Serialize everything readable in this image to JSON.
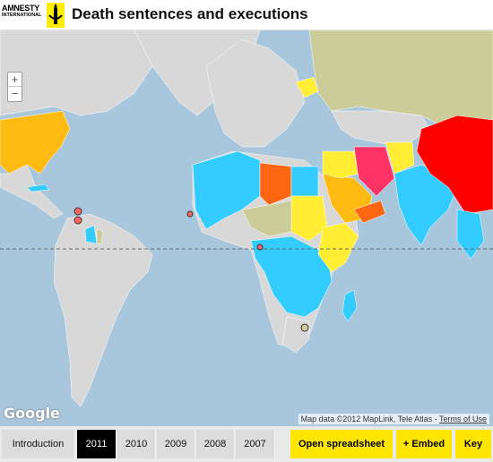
{
  "header": {
    "logo_line1": "AMNESTY",
    "logo_line2": "INTERNATIONAL",
    "title": "Death sentences and executions"
  },
  "map": {
    "zoom_in": "+",
    "zoom_out": "−",
    "google_logo": "Google",
    "attribution": "Map data ©2012 MapLink, Tele Atlas - ",
    "terms": "Terms of Use",
    "colors": {
      "ocean": "#a8c6dc",
      "land": "#d8d8d8",
      "cyan": "#33ccff",
      "yellow": "#ffee33",
      "orange": "#ffbb11",
      "dark_orange": "#ff6611",
      "pink": "#ff3366",
      "red": "#ff0000",
      "olive": "#cccc99"
    }
  },
  "footer": {
    "tabs": [
      {
        "label": "Introduction"
      },
      {
        "label": "2011"
      },
      {
        "label": "2010"
      },
      {
        "label": "2009"
      },
      {
        "label": "2008"
      },
      {
        "label": "2007"
      }
    ],
    "buttons": [
      {
        "label": "Open spreadsheet"
      },
      {
        "label": "+ Embed"
      },
      {
        "label": "Key"
      }
    ]
  }
}
